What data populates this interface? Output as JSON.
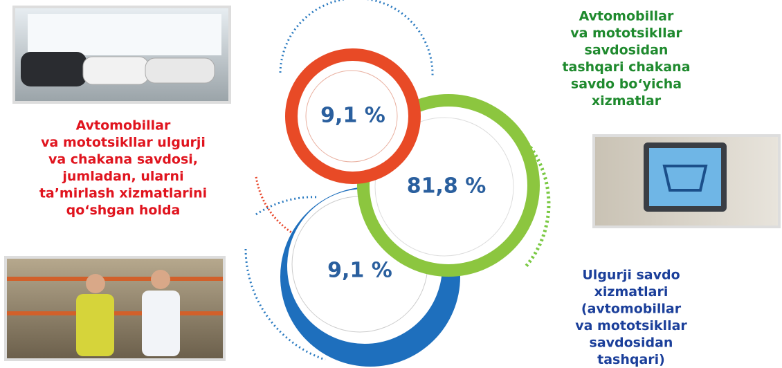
{
  "items": [
    {
      "value": "9,1 %",
      "lines": [
        "Avtomobillar",
        "va mototsikllar ulgurji",
        "va chakana savdosi,",
        "jumladan, ularni",
        "ta’mirlash xizmatlarini",
        "qo‘shgan holda"
      ]
    },
    {
      "value": "81,8 %",
      "lines": [
        "Avtomobillar",
        "va mototsikllar",
        "savdosidan",
        "tashqari chakana",
        "savdo bo‘yicha",
        "xizmatlar"
      ]
    },
    {
      "value": "9,1 %",
      "lines": [
        "Ulgurji savdo",
        "xizmatlari",
        "(avtomobillar",
        "va mototsikllar",
        "savdosidan",
        "tashqari)"
      ]
    }
  ]
}
